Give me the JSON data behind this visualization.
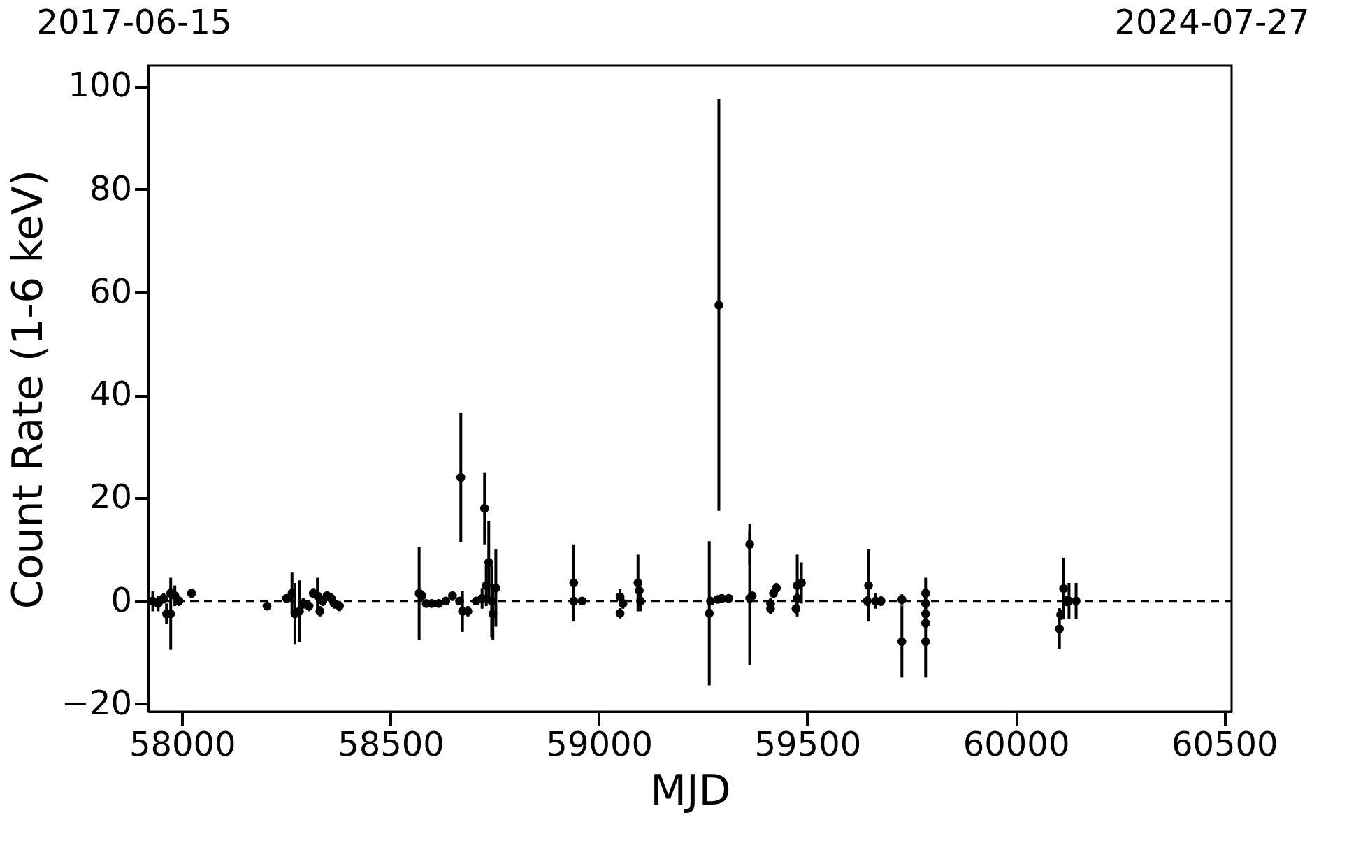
{
  "chart_data": {
    "type": "scatter",
    "xlabel": "MJD",
    "ylabel": "Count Rate (1-6 keV)",
    "xlim": [
      57919,
      60518
    ],
    "xticks": [
      58000,
      58500,
      59000,
      59500,
      60000,
      60500
    ],
    "ylim": [
      -21.5,
      104
    ],
    "yticks": [
      -20,
      0,
      20,
      40,
      60,
      80,
      100
    ],
    "annotations": [
      "2017-06-15",
      "2024-07-27"
    ],
    "marker": "circle",
    "grid": false,
    "ref_lines": [
      {
        "axis": "y",
        "value": 0,
        "color": "#000000",
        "line_style": "dashed"
      }
    ],
    "series": [
      {
        "color": "#000000",
        "x": [
          57930,
          57943,
          57956,
          57963,
          57973,
          57973,
          57983,
          57993,
          58023,
          58204,
          58251,
          58264,
          58271,
          58282,
          58291,
          58305,
          58315,
          58325,
          58331,
          58338,
          58348,
          58358,
          58365,
          58378,
          58569,
          58576,
          58586,
          58599,
          58616,
          58633,
          58649,
          58666,
          58669,
          58673,
          58686,
          58706,
          58720,
          58726,
          58730,
          58736,
          58743,
          58746,
          58753,
          58940,
          58940,
          58960,
          59051,
          59051,
          59058,
          59094,
          59097,
          59100,
          59265,
          59268,
          59285,
          59288,
          59295,
          59312,
          59362,
          59362,
          59368,
          59412,
          59412,
          59419,
          59426,
          59476,
          59473,
          59486,
          59476,
          59647,
          59644,
          59664,
          59677,
          59727,
          59727,
          59784,
          59784,
          59784,
          59784,
          59784,
          60105,
          60108,
          60115,
          60122,
          60128,
          60145
        ],
        "values": [
          0,
          -0.5,
          0.5,
          -2.5,
          -2.5,
          1.5,
          1,
          0,
          1.5,
          -1,
          0.5,
          1.5,
          -2.5,
          -2,
          -0.5,
          -1,
          1.5,
          1,
          -2,
          0,
          1,
          0.5,
          -0.5,
          -1,
          1.5,
          1,
          -0.5,
          -0.5,
          -0.5,
          0,
          1,
          0,
          24,
          -2,
          -2,
          0,
          0.5,
          18,
          3,
          7.5,
          0,
          -2.5,
          2.5,
          3.5,
          0,
          0,
          0.8,
          -2.4,
          -0.5,
          3.5,
          2,
          0,
          -2.4,
          0,
          0.3,
          57.5,
          0.5,
          0.5,
          11,
          0.5,
          1,
          -0.5,
          -1.5,
          1.5,
          2.5,
          3,
          -1.5,
          3.5,
          0.5,
          3,
          0,
          0,
          0,
          0.3,
          -7.9,
          1.5,
          -0.5,
          -2.5,
          -4.3,
          -7.9,
          -5.4,
          -2.7,
          2.4,
          0,
          0,
          0
        ],
        "errors": [
          2,
          1.5,
          1,
          2,
          7,
          1,
          2,
          1,
          0.8,
          0.8,
          0.5,
          4,
          6,
          6,
          1,
          1,
          1,
          3.5,
          1,
          1,
          1,
          1,
          1,
          1,
          9,
          1,
          0.5,
          0.5,
          0.5,
          0.5,
          1,
          0.5,
          12.5,
          4,
          1,
          0.5,
          2,
          7,
          4,
          8,
          7,
          5,
          7.5,
          7.5,
          0.5,
          0.5,
          1.5,
          1,
          1,
          5.5,
          1,
          2,
          14,
          0.5,
          0.5,
          40,
          0.5,
          0.5,
          4,
          13,
          1,
          1,
          1,
          1,
          1,
          6,
          1,
          4,
          1,
          7,
          1,
          1.5,
          1,
          1,
          7,
          3,
          1,
          1,
          1,
          7,
          4,
          1,
          6,
          1,
          3.5,
          3.5
        ]
      }
    ]
  }
}
